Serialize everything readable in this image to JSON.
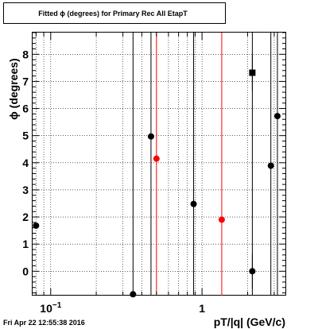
{
  "chart_data": {
    "type": "scatter",
    "title": "Fitted ϕ (degrees) for Primary Rec All EtapT",
    "xlabel": "pT/|q| (GeV/c)",
    "ylabel": "ϕ (degrees)",
    "x_scale": "log",
    "xlim": [
      0.075,
      3.6
    ],
    "ylim": [
      -0.9,
      8.8
    ],
    "y_ticks": [
      0,
      1,
      2,
      3,
      4,
      5,
      6,
      7,
      8
    ],
    "x_tick_labels": [
      {
        "value": 0.1,
        "base": "10",
        "exp": "−1"
      },
      {
        "value": 1,
        "base": "1",
        "exp": ""
      }
    ],
    "grid": true,
    "vertical_lines": [
      {
        "x": 0.35,
        "color": "#000000"
      },
      {
        "x": 0.46,
        "color": "#000000"
      },
      {
        "x": 0.5,
        "color": "#ff0000"
      },
      {
        "x": 0.88,
        "color": "#000000"
      },
      {
        "x": 1.35,
        "color": "#ff0000"
      },
      {
        "x": 2.15,
        "color": "#000000"
      },
      {
        "x": 2.85,
        "color": "#000000"
      },
      {
        "x": 3.15,
        "color": "#000000"
      }
    ],
    "series": [
      {
        "color": "#000000",
        "marker": "circle",
        "points": [
          {
            "x": 0.08,
            "y": 1.68
          },
          {
            "x": 0.35,
            "y": -0.85
          },
          {
            "x": 0.46,
            "y": 4.97
          },
          {
            "x": 0.88,
            "y": 2.48
          },
          {
            "x": 2.15,
            "y": 0.0,
            "err": 0.65
          },
          {
            "x": 2.85,
            "y": 3.89
          },
          {
            "x": 3.15,
            "y": 5.72
          }
        ]
      },
      {
        "color": "#ff0000",
        "marker": "circle",
        "points": [
          {
            "x": 0.5,
            "y": 4.15
          },
          {
            "x": 1.35,
            "y": 1.9
          }
        ]
      },
      {
        "color": "#000000",
        "marker": "square",
        "points": [
          {
            "x": 2.15,
            "y": 7.32,
            "err": 0.65
          }
        ]
      }
    ]
  },
  "footer": {
    "timestamp": "Fri Apr 22 12:55:38 2016"
  }
}
